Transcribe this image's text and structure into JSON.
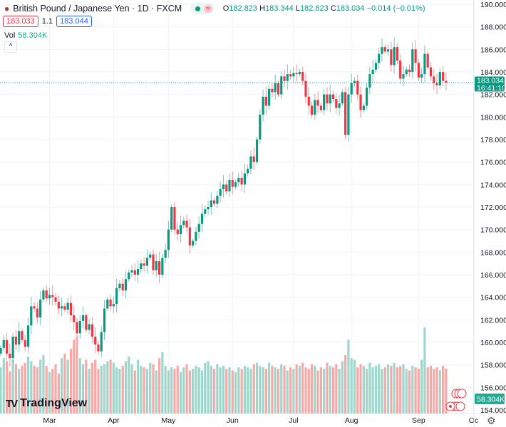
{
  "header": {
    "symbol_title": "British Pound / Japanese Yen · 1D · FXCM",
    "open_label": "O",
    "open": "182.823",
    "high_label": "H",
    "high": "183.344",
    "low_label": "L",
    "low": "182.823",
    "close_label": "C",
    "close": "183.034",
    "change": "−0.014 (−0.01%)",
    "wave_icon": "≈",
    "sell_price": "183.033",
    "spread": "1.1",
    "buy_price": "183.044",
    "vol_label": "Vol",
    "vol_value": "58.304K",
    "collapse_icon": "^"
  },
  "price_label": {
    "price": "183.034",
    "countdown": "16:41:10"
  },
  "volume_label": "58.304K",
  "brand": "TradingView",
  "colors": {
    "up": "#089981",
    "down": "#f23645",
    "up_vol": "#9fd6cc",
    "down_vol": "#f7a9a7"
  },
  "chart_data": {
    "type": "candlestick",
    "title": "British Pound / Japanese Yen · 1D · FXCM",
    "ylim": [
      154,
      190
    ],
    "y_ticks": [
      "190.000",
      "188.000",
      "186.000",
      "184.000",
      "182.000",
      "180.000",
      "178.000",
      "176.000",
      "174.000",
      "172.000",
      "170.000",
      "168.000",
      "166.000",
      "164.000",
      "162.000",
      "160.000",
      "158.000",
      "156.000",
      "154.000"
    ],
    "x_ticks": [
      {
        "label": "Mar",
        "index": 16
      },
      {
        "label": "Apr",
        "index": 37
      },
      {
        "label": "May",
        "index": 55
      },
      {
        "label": "Jun",
        "index": 76
      },
      {
        "label": "Jul",
        "index": 96
      },
      {
        "label": "Aug",
        "index": 115
      },
      {
        "label": "Sep",
        "index": 137
      },
      {
        "label": "Oc",
        "index": 155
      }
    ],
    "first_open": 159.0,
    "close": [
      159.5,
      160.2,
      159.0,
      158.6,
      160.5,
      159.8,
      161.0,
      160.2,
      159.6,
      161.5,
      163.2,
      163.0,
      162.2,
      163.8,
      164.6,
      163.9,
      164.2,
      164.0,
      163.6,
      163.0,
      163.2,
      162.9,
      163.5,
      162.4,
      161.8,
      160.8,
      161.9,
      162.4,
      161.1,
      161.6,
      160.5,
      159.8,
      159.2,
      160.9,
      163.0,
      163.8,
      163.2,
      163.4,
      164.8,
      165.2,
      164.6,
      165.6,
      166.2,
      166.4,
      166.0,
      166.5,
      167.0,
      166.8,
      167.5,
      167.8,
      166.4,
      167.2,
      166.0,
      167.5,
      168.2,
      170.0,
      172.0,
      170.0,
      169.6,
      170.4,
      170.8,
      170.2,
      168.6,
      169.0,
      169.8,
      170.5,
      171.4,
      171.8,
      172.0,
      172.6,
      172.3,
      173.0,
      173.6,
      174.0,
      173.4,
      174.4,
      173.8,
      174.2,
      174.6,
      174.0,
      175.0,
      175.4,
      176.5,
      176.0,
      178.0,
      180.2,
      181.8,
      181.0,
      182.5,
      182.2,
      183.0,
      182.0,
      183.6,
      183.2,
      183.8,
      183.6,
      183.9,
      183.8,
      184.0,
      183.2,
      181.8,
      181.0,
      180.2,
      181.5,
      181.0,
      180.6,
      182.0,
      181.2,
      182.0,
      181.6,
      180.8,
      181.2,
      182.2,
      178.4,
      182.0,
      183.0,
      183.2,
      182.0,
      180.6,
      181.0,
      182.6,
      183.8,
      184.2,
      184.8,
      185.6,
      186.2,
      185.8,
      186.0,
      184.6,
      186.2,
      185.0,
      183.4,
      183.8,
      184.2,
      184.0,
      186.0,
      184.8,
      183.5,
      183.8,
      185.6,
      184.4,
      183.6,
      183.0,
      182.8,
      184.0,
      183.2,
      183.034
    ],
    "volume_k": [
      60,
      72,
      68,
      55,
      70,
      64,
      58,
      62,
      66,
      74,
      68,
      62,
      60,
      70,
      76,
      62,
      54,
      58,
      64,
      52,
      72,
      78,
      70,
      84,
      96,
      100,
      72,
      64,
      70,
      58,
      66,
      70,
      58,
      62,
      64,
      68,
      70,
      66,
      60,
      58,
      62,
      68,
      74,
      64,
      56,
      70,
      62,
      60,
      58,
      66,
      64,
      56,
      72,
      80,
      62,
      56,
      60,
      58,
      62,
      54,
      60,
      64,
      56,
      58,
      62,
      60,
      56,
      66,
      68,
      62,
      58,
      64,
      60,
      62,
      58,
      60,
      56,
      54,
      60,
      58,
      62,
      60,
      58,
      64,
      66,
      62,
      60,
      58,
      66,
      62,
      60,
      58,
      64,
      62,
      56,
      60,
      58,
      64,
      62,
      66,
      60,
      58,
      64,
      62,
      56,
      60,
      58,
      66,
      62,
      60,
      64,
      58,
      68,
      76,
      96,
      72,
      70,
      60,
      64,
      62,
      58,
      66,
      60,
      62,
      64,
      58,
      60,
      64,
      62,
      66,
      60,
      62,
      64,
      58,
      56,
      62,
      60,
      58,
      70,
      112,
      60,
      62,
      58,
      60,
      56,
      62,
      58.304
    ],
    "last_price": 183.034
  }
}
